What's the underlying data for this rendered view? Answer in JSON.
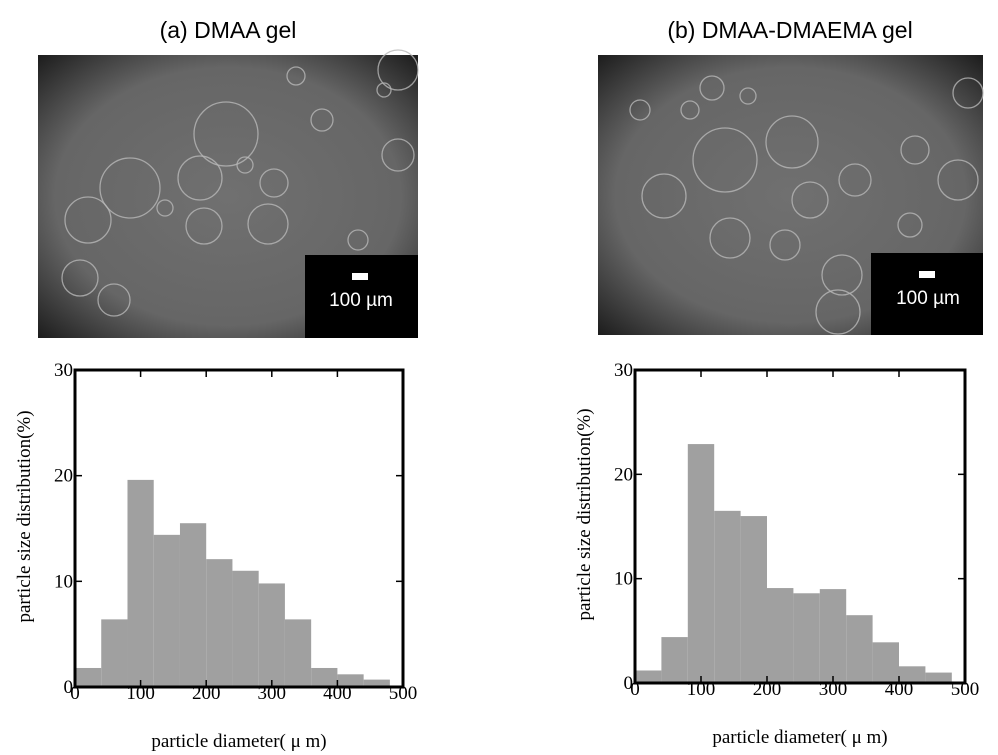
{
  "chart_data": [
    {
      "type": "histogram",
      "title": "(a) DMAA gel",
      "bins": [
        0,
        40,
        80,
        120,
        160,
        200,
        240,
        280,
        320,
        360,
        400,
        440,
        480
      ],
      "values": [
        1.8,
        6.4,
        19.6,
        14.4,
        15.5,
        12.1,
        11,
        9.8,
        6.4,
        1.8,
        1.2,
        0.7
      ],
      "color": "#a0a0a0",
      "xlabel": "particle diameter( μ m)",
      "ylabel": "particle size distribution(%)",
      "xlim": [
        0,
        500
      ],
      "xticks": [
        0,
        100,
        200,
        300,
        400,
        500
      ],
      "ylim": [
        0,
        30
      ],
      "yticks": [
        0,
        10,
        20,
        30
      ]
    },
    {
      "type": "histogram",
      "title": "(b) DMAA-DMAEMA gel",
      "bins": [
        0,
        40,
        80,
        120,
        160,
        200,
        240,
        280,
        320,
        360,
        400,
        440,
        480
      ],
      "values": [
        1.2,
        4.4,
        22.9,
        16.5,
        16,
        9.1,
        8.6,
        9,
        6.5,
        3.9,
        1.6,
        1
      ],
      "color": "#a0a0a0",
      "xlabel": "particle diameter( μ m)",
      "ylabel": "particle size distribution(%)",
      "xlim": [
        0,
        500
      ],
      "xticks": [
        0,
        100,
        200,
        300,
        400,
        500
      ],
      "ylim": [
        0,
        30
      ],
      "yticks": [
        0,
        10,
        20,
        30
      ]
    }
  ],
  "micrographs": [
    {
      "scale_bar_label": "100 µm"
    },
    {
      "scale_bar_label": "100 µm"
    }
  ]
}
